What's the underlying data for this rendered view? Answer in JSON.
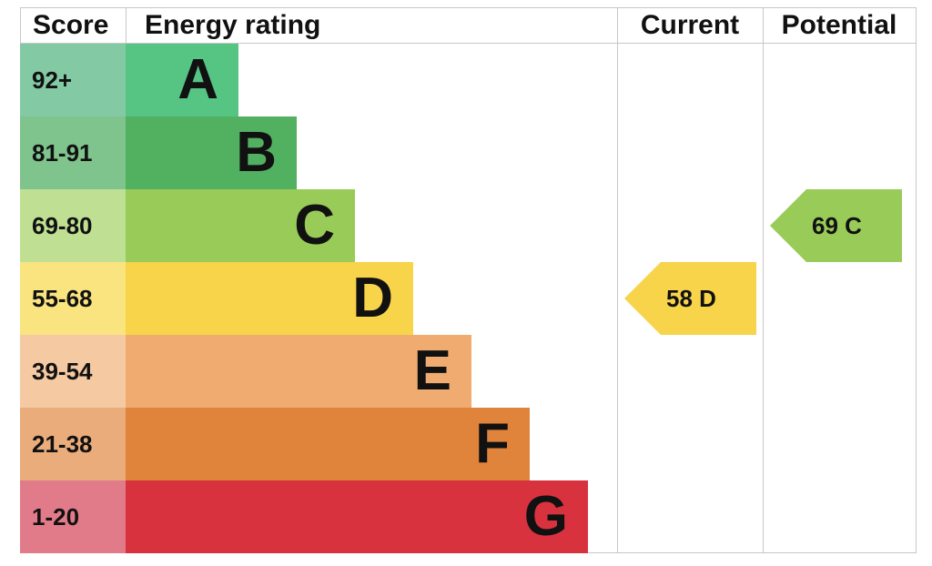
{
  "chart_data": {
    "type": "table",
    "headers": {
      "score": "Score",
      "rating": "Energy rating",
      "current": "Current",
      "potential": "Potential"
    },
    "bands": [
      {
        "score": "92+",
        "letter": "A",
        "color": "#56c584",
        "score_color": "#83c9a4"
      },
      {
        "score": "81-91",
        "letter": "B",
        "color": "#52b061",
        "score_color": "#7fc38d"
      },
      {
        "score": "69-80",
        "letter": "C",
        "color": "#98cb58",
        "score_color": "#bfe093"
      },
      {
        "score": "55-68",
        "letter": "D",
        "color": "#f7d44a",
        "score_color": "#fae47f"
      },
      {
        "score": "39-54",
        "letter": "E",
        "color": "#f0ac70",
        "score_color": "#f5c9a2"
      },
      {
        "score": "21-38",
        "letter": "F",
        "color": "#e0843b",
        "score_color": "#eaac7a"
      },
      {
        "score": "1-20",
        "letter": "G",
        "color": "#d9323f",
        "score_color": "#e27b89"
      }
    ],
    "current": {
      "value": 58,
      "letter": "D",
      "text": "58  D",
      "color": "#f7d44a"
    },
    "potential": {
      "value": 69,
      "letter": "C",
      "text": "69  C",
      "color": "#98cb58"
    }
  }
}
